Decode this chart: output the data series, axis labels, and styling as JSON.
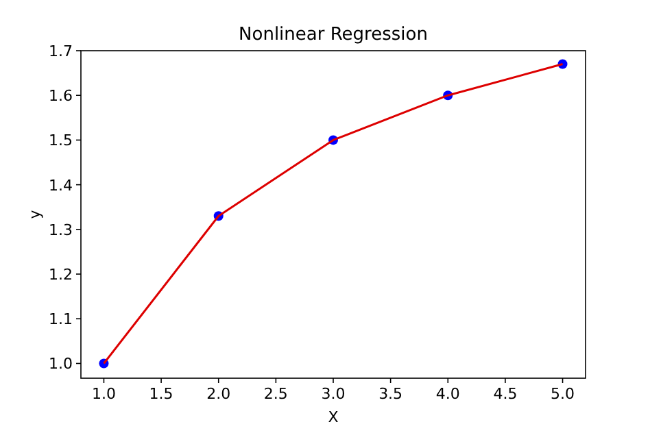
{
  "chart_data": {
    "type": "scatter",
    "title": "Nonlinear Regression",
    "xlabel": "X",
    "ylabel": "y",
    "xlim": [
      0.8,
      5.2
    ],
    "xticks": [
      {
        "value": 1,
        "label": "1.0"
      },
      {
        "value": 1.5,
        "label": "1.5"
      },
      {
        "value": 2,
        "label": "2.0"
      },
      {
        "value": 2.5,
        "label": "2.5"
      },
      {
        "value": 3,
        "label": "3.0"
      },
      {
        "value": 3.5,
        "label": "3.5"
      },
      {
        "value": 4,
        "label": "4.0"
      },
      {
        "value": 4.5,
        "label": "4.5"
      },
      {
        "value": 5,
        "label": "5.0"
      }
    ],
    "ylim": [
      0.967,
      1.7
    ],
    "yticks": [
      {
        "value": 1,
        "label": "1.0"
      },
      {
        "value": 1.1,
        "label": "1.1"
      },
      {
        "value": 1.2,
        "label": "1.2"
      },
      {
        "value": 1.3,
        "label": "1.3"
      },
      {
        "value": 1.4,
        "label": "1.4"
      },
      {
        "value": 1.5,
        "label": "1.5"
      },
      {
        "value": 1.6,
        "label": "1.6"
      },
      {
        "value": 1.7,
        "label": "1.7"
      }
    ],
    "grid": false,
    "series": [
      {
        "marker": "circle",
        "color": "#0000ff",
        "x": [
          1,
          2,
          3,
          4,
          5
        ],
        "values": [
          1.0,
          1.33,
          1.5,
          1.6,
          1.67
        ]
      },
      {
        "type": "line",
        "color": "#dd0000",
        "x": [
          1,
          2,
          3,
          4,
          5
        ],
        "values": [
          1.0,
          1.33,
          1.5,
          1.6,
          1.67
        ]
      }
    ]
  }
}
